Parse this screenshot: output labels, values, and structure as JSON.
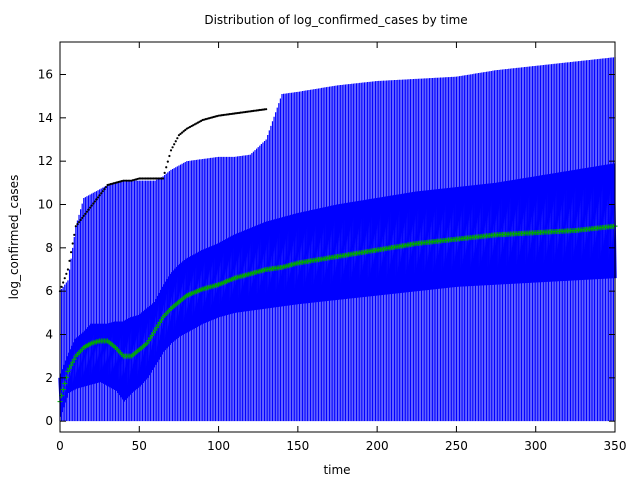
{
  "chart_data": {
    "type": "box",
    "title": "Distribution of log_confirmed_cases by time",
    "xlabel": "time",
    "ylabel": "log_confirmed_cases",
    "xlim": [
      0,
      350
    ],
    "ylim": [
      -0.5,
      17.5
    ],
    "x_ticks": [
      0,
      50,
      100,
      150,
      200,
      250,
      300,
      350
    ],
    "y_ticks": [
      0,
      2,
      4,
      6,
      8,
      10,
      12,
      14,
      16
    ],
    "grid": false,
    "legend": "none",
    "colors": {
      "whisker": "#0000ff",
      "box": "#0000ff",
      "median": "#00aa00",
      "outlier": "#000000"
    },
    "knots": {
      "x": [
        0,
        5,
        10,
        15,
        20,
        25,
        30,
        35,
        40,
        45,
        50,
        55,
        60,
        65,
        70,
        75,
        80,
        90,
        100,
        110,
        120,
        130,
        140,
        150,
        175,
        200,
        225,
        250,
        275,
        300,
        325,
        350
      ],
      "upper_whisker": [
        6.0,
        6.5,
        9.0,
        10.3,
        10.5,
        10.7,
        10.9,
        11.0,
        11.1,
        11.1,
        11.1,
        11.1,
        11.1,
        11.3,
        11.6,
        11.8,
        12.0,
        12.1,
        12.2,
        12.2,
        12.3,
        13.0,
        15.1,
        15.2,
        15.5,
        15.7,
        15.8,
        15.9,
        16.2,
        16.4,
        16.6,
        16.8
      ],
      "q3": [
        2.0,
        3.0,
        3.8,
        4.1,
        4.5,
        4.5,
        4.5,
        4.6,
        4.6,
        4.8,
        4.9,
        5.2,
        5.5,
        6.2,
        6.8,
        7.2,
        7.5,
        7.9,
        8.2,
        8.6,
        8.9,
        9.2,
        9.4,
        9.6,
        10.0,
        10.3,
        10.6,
        10.8,
        11.0,
        11.3,
        11.6,
        11.9
      ],
      "median": [
        0.9,
        2.3,
        3.0,
        3.4,
        3.6,
        3.7,
        3.7,
        3.4,
        3.0,
        3.0,
        3.3,
        3.6,
        4.2,
        4.8,
        5.2,
        5.5,
        5.8,
        6.1,
        6.3,
        6.6,
        6.8,
        7.0,
        7.1,
        7.3,
        7.6,
        7.9,
        8.2,
        8.4,
        8.6,
        8.7,
        8.8,
        9.0
      ],
      "q1": [
        0.2,
        1.3,
        1.5,
        1.6,
        1.7,
        1.8,
        1.6,
        1.4,
        0.9,
        1.3,
        1.6,
        2.0,
        2.6,
        3.2,
        3.6,
        3.9,
        4.1,
        4.5,
        4.8,
        5.0,
        5.1,
        5.2,
        5.3,
        5.4,
        5.6,
        5.8,
        6.0,
        6.2,
        6.3,
        6.4,
        6.5,
        6.6
      ],
      "lower_whisker": [
        0,
        0,
        0,
        0,
        0,
        0,
        0,
        0,
        0,
        0,
        0,
        0,
        0,
        0,
        0,
        0,
        0,
        0,
        0,
        0,
        0,
        0,
        0,
        0,
        0,
        0,
        0,
        0,
        0,
        0,
        0,
        0
      ]
    },
    "outlier_max": {
      "x": [
        0,
        5,
        10,
        30,
        35,
        40,
        45,
        50,
        55,
        60,
        65,
        70,
        75,
        80,
        90,
        100,
        110,
        120,
        130
      ],
      "y": [
        6.0,
        7.0,
        9.0,
        10.9,
        11.0,
        11.1,
        11.1,
        11.2,
        11.2,
        11.2,
        11.2,
        12.5,
        13.2,
        13.5,
        13.9,
        14.1,
        14.2,
        14.3,
        14.4
      ]
    }
  }
}
